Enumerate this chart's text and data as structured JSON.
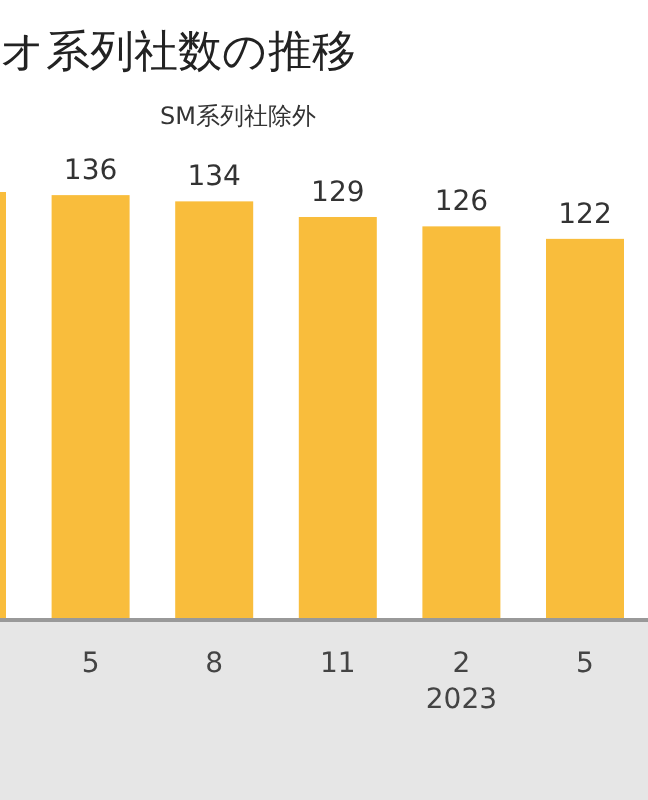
{
  "chart_data": {
    "type": "bar",
    "title": "オ系列社数の推移",
    "subtitle": "SM系列社除外",
    "categories": [
      null,
      "5",
      "8",
      "11",
      "2",
      "5"
    ],
    "values": [
      137,
      136,
      134,
      129,
      126,
      122
    ],
    "value_labels": [
      null,
      "136",
      "134",
      "129",
      "126",
      "122"
    ],
    "color": "#f9bd3c",
    "annotations": [
      "2023"
    ]
  }
}
